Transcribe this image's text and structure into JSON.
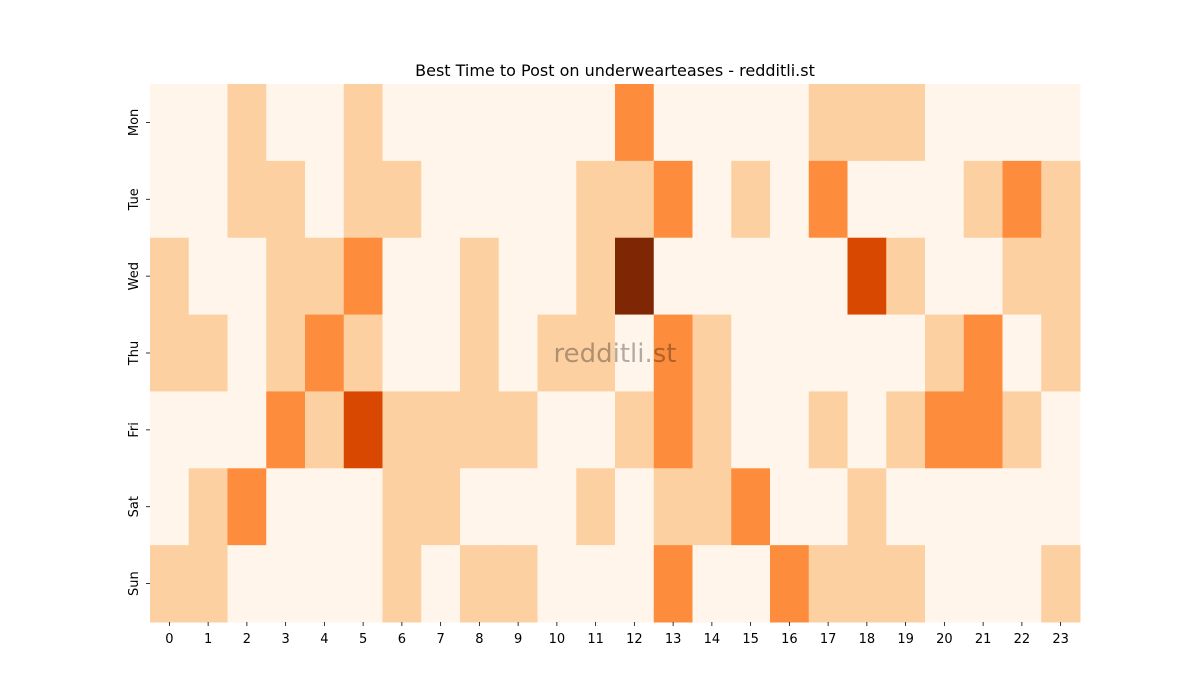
{
  "chart_data": {
    "type": "heatmap",
    "title": "Best Time to Post on underwearteases - redditli.st",
    "watermark": "redditli.st",
    "xlabel": "",
    "ylabel": "",
    "x_categories": [
      "0",
      "1",
      "2",
      "3",
      "4",
      "5",
      "6",
      "7",
      "8",
      "9",
      "10",
      "11",
      "12",
      "13",
      "14",
      "15",
      "16",
      "17",
      "18",
      "19",
      "20",
      "21",
      "22",
      "23"
    ],
    "y_categories": [
      "Mon",
      "Tue",
      "Wed",
      "Thu",
      "Fri",
      "Sat",
      "Sun"
    ],
    "colormap": "Oranges",
    "vmin": 0,
    "vmax": 4,
    "colorbar": false,
    "grid": false,
    "values": [
      [
        0,
        0,
        1,
        0,
        0,
        1,
        0,
        0,
        0,
        0,
        0,
        0,
        2,
        0,
        0,
        0,
        0,
        1,
        1,
        1,
        0,
        0,
        0,
        0
      ],
      [
        0,
        0,
        1,
        1,
        0,
        1,
        1,
        0,
        0,
        0,
        0,
        1,
        1,
        2,
        0,
        1,
        0,
        2,
        0,
        0,
        0,
        1,
        2,
        1
      ],
      [
        1,
        0,
        0,
        1,
        1,
        2,
        0,
        0,
        1,
        0,
        0,
        1,
        4,
        0,
        0,
        0,
        0,
        0,
        3,
        1,
        0,
        0,
        1,
        1
      ],
      [
        1,
        1,
        0,
        1,
        2,
        1,
        0,
        0,
        1,
        0,
        1,
        1,
        0,
        2,
        1,
        0,
        0,
        0,
        0,
        0,
        1,
        2,
        0,
        1
      ],
      [
        0,
        0,
        0,
        2,
        1,
        3,
        1,
        1,
        1,
        1,
        0,
        0,
        1,
        2,
        1,
        0,
        0,
        1,
        0,
        1,
        2,
        2,
        1,
        0
      ],
      [
        0,
        1,
        2,
        0,
        0,
        0,
        1,
        1,
        0,
        0,
        0,
        1,
        0,
        1,
        1,
        2,
        0,
        0,
        1,
        0,
        0,
        0,
        0,
        0
      ],
      [
        1,
        1,
        0,
        0,
        0,
        0,
        1,
        0,
        1,
        1,
        0,
        0,
        0,
        2,
        0,
        0,
        2,
        1,
        1,
        1,
        0,
        0,
        0,
        1
      ]
    ],
    "level_colors": [
      "#fff5eb",
      "#fdd0a2",
      "#fd8d3c",
      "#d94801",
      "#7f2704"
    ]
  }
}
